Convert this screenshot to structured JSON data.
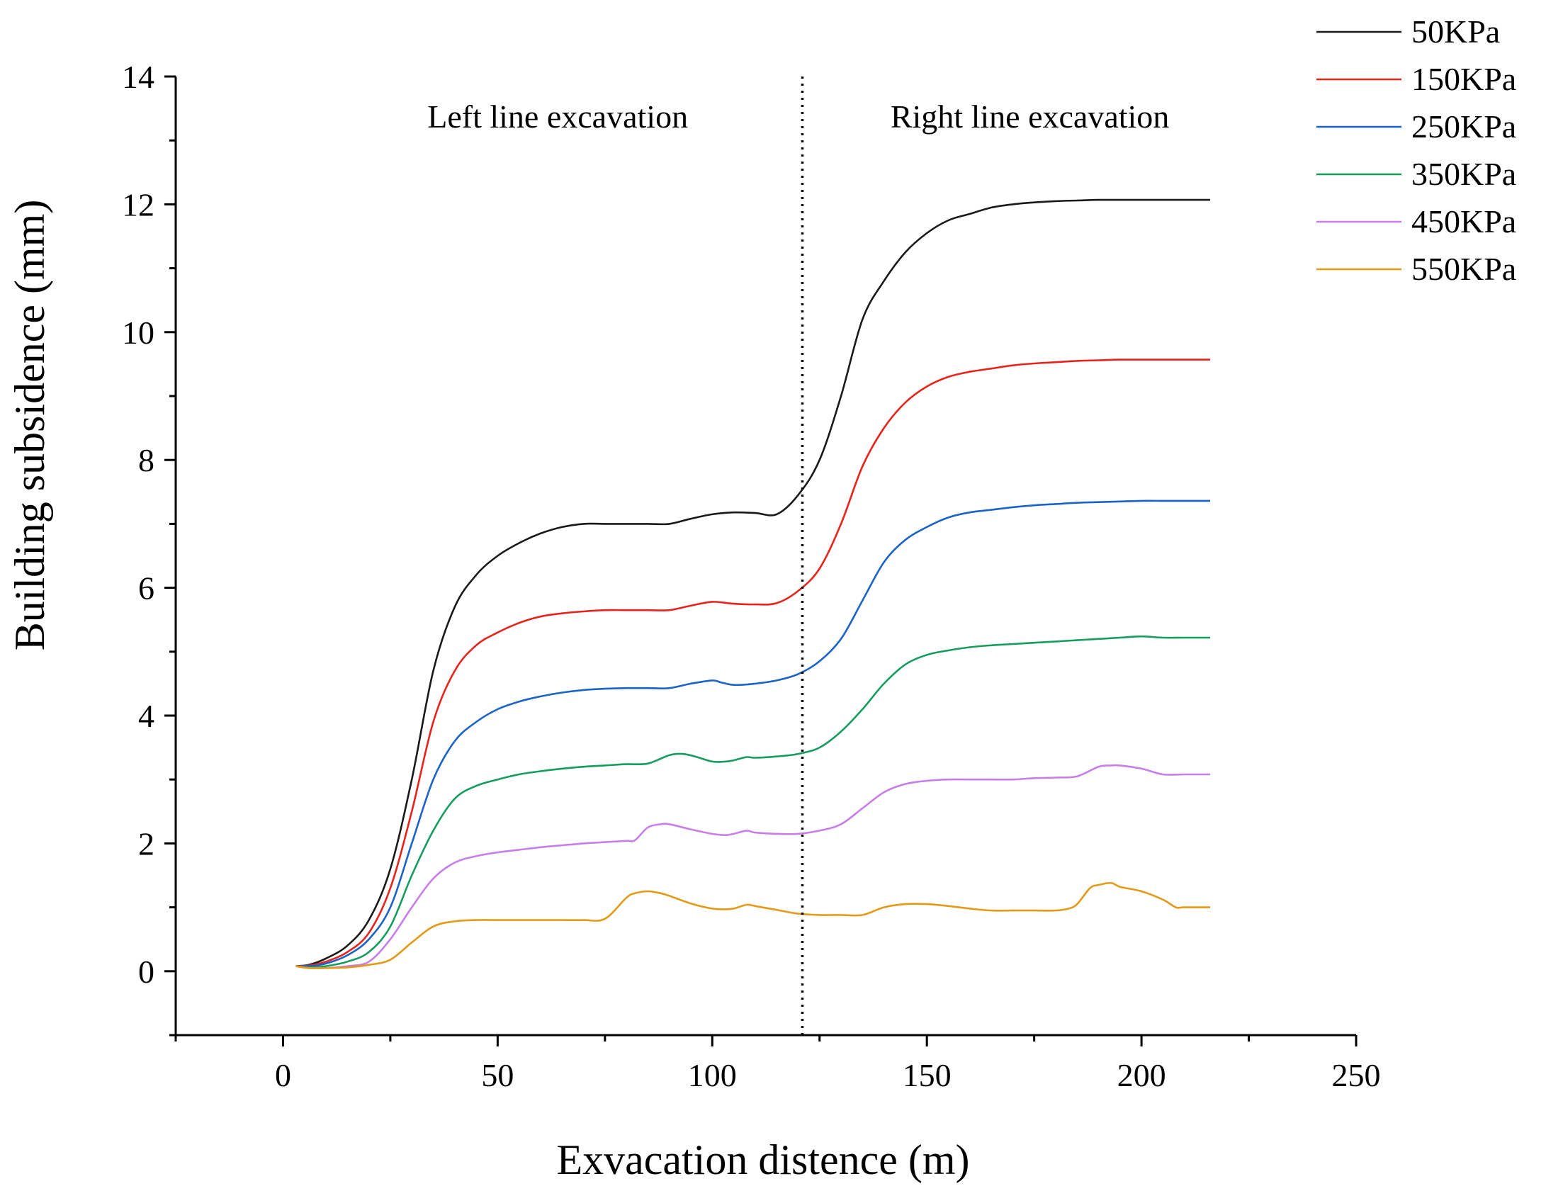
{
  "chart_data": {
    "type": "line",
    "title": "",
    "xlabel": "Exvacation distence (m)",
    "ylabel": "Building subsidence (mm)",
    "xlim": [
      -25,
      250
    ],
    "ylim": [
      -1,
      14
    ],
    "xticks": [
      0,
      50,
      100,
      150,
      200,
      250
    ],
    "yticks": [
      0,
      2,
      4,
      6,
      8,
      10,
      12,
      14
    ],
    "legend_position": "top-right",
    "divider": {
      "x": 121,
      "style": "dotted"
    },
    "annotations": [
      {
        "text": "Left line excavation",
        "x": 64,
        "y": 13.2
      },
      {
        "text": "Right line excavation",
        "x": 174,
        "y": 13.2
      }
    ],
    "series": [
      {
        "name": "50KPa",
        "color": "#1a1a1a",
        "x": [
          3,
          6,
          10,
          15,
          20,
          25,
          30,
          35,
          40,
          45,
          50,
          55,
          60,
          65,
          70,
          75,
          80,
          85,
          90,
          95,
          100,
          105,
          110,
          115,
          120,
          125,
          130,
          135,
          140,
          145,
          150,
          155,
          160,
          165,
          170,
          175,
          180,
          185,
          190,
          195,
          200,
          205,
          210,
          216
        ],
        "y": [
          0.08,
          0.1,
          0.2,
          0.4,
          0.8,
          1.6,
          3.0,
          4.7,
          5.7,
          6.2,
          6.5,
          6.7,
          6.85,
          6.95,
          7.0,
          7.0,
          7.0,
          7.0,
          7.0,
          7.08,
          7.15,
          7.18,
          7.17,
          7.15,
          7.45,
          8.0,
          9.0,
          10.2,
          10.8,
          11.25,
          11.55,
          11.75,
          11.85,
          11.95,
          12.0,
          12.03,
          12.05,
          12.06,
          12.07,
          12.07,
          12.07,
          12.07,
          12.07,
          12.07
        ]
      },
      {
        "name": "150KPa",
        "color": "#e8231b",
        "x": [
          3,
          6,
          10,
          15,
          20,
          25,
          30,
          35,
          40,
          45,
          50,
          55,
          60,
          65,
          70,
          75,
          80,
          85,
          90,
          95,
          100,
          105,
          110,
          115,
          120,
          125,
          130,
          135,
          140,
          145,
          150,
          155,
          160,
          165,
          170,
          175,
          180,
          185,
          190,
          195,
          200,
          205,
          210,
          216
        ],
        "y": [
          0.08,
          0.09,
          0.15,
          0.3,
          0.6,
          1.3,
          2.5,
          3.9,
          4.7,
          5.1,
          5.3,
          5.45,
          5.55,
          5.6,
          5.63,
          5.65,
          5.65,
          5.65,
          5.65,
          5.72,
          5.78,
          5.75,
          5.74,
          5.76,
          5.95,
          6.3,
          7.0,
          7.9,
          8.5,
          8.9,
          9.15,
          9.3,
          9.38,
          9.43,
          9.48,
          9.51,
          9.53,
          9.55,
          9.56,
          9.57,
          9.57,
          9.57,
          9.57,
          9.57
        ]
      },
      {
        "name": "250KPa",
        "color": "#1a63c8",
        "x": [
          3,
          6,
          10,
          15,
          20,
          25,
          30,
          35,
          40,
          45,
          50,
          55,
          60,
          65,
          70,
          75,
          80,
          85,
          90,
          95,
          100,
          102,
          105,
          110,
          115,
          120,
          125,
          130,
          135,
          140,
          145,
          150,
          155,
          160,
          165,
          170,
          175,
          180,
          185,
          190,
          195,
          200,
          205,
          210,
          216
        ],
        "y": [
          0.08,
          0.08,
          0.12,
          0.25,
          0.5,
          1.0,
          2.0,
          3.0,
          3.6,
          3.9,
          4.1,
          4.22,
          4.3,
          4.36,
          4.4,
          4.42,
          4.43,
          4.43,
          4.43,
          4.5,
          4.55,
          4.52,
          4.48,
          4.5,
          4.55,
          4.65,
          4.85,
          5.2,
          5.8,
          6.4,
          6.75,
          6.95,
          7.1,
          7.18,
          7.22,
          7.26,
          7.29,
          7.31,
          7.33,
          7.34,
          7.35,
          7.36,
          7.36,
          7.36,
          7.36
        ]
      },
      {
        "name": "350KPa",
        "color": "#159d5e",
        "x": [
          3,
          6,
          10,
          15,
          20,
          25,
          30,
          35,
          40,
          45,
          50,
          55,
          60,
          65,
          70,
          75,
          80,
          85,
          90,
          93,
          96,
          100,
          103,
          105,
          108,
          110,
          115,
          120,
          125,
          130,
          135,
          140,
          145,
          150,
          155,
          160,
          165,
          170,
          175,
          180,
          185,
          190,
          195,
          200,
          205,
          210,
          216
        ],
        "y": [
          0.08,
          0.06,
          0.08,
          0.15,
          0.3,
          0.7,
          1.5,
          2.2,
          2.7,
          2.9,
          3.0,
          3.08,
          3.13,
          3.17,
          3.2,
          3.22,
          3.24,
          3.25,
          3.38,
          3.4,
          3.36,
          3.28,
          3.28,
          3.3,
          3.35,
          3.34,
          3.36,
          3.4,
          3.5,
          3.75,
          4.1,
          4.5,
          4.8,
          4.95,
          5.02,
          5.07,
          5.1,
          5.12,
          5.14,
          5.16,
          5.18,
          5.2,
          5.22,
          5.24,
          5.22,
          5.22,
          5.22
        ]
      },
      {
        "name": "450KPa",
        "color": "#c77ee8",
        "x": [
          3,
          6,
          10,
          15,
          20,
          25,
          30,
          35,
          40,
          45,
          50,
          55,
          60,
          65,
          70,
          75,
          80,
          82,
          85,
          88,
          90,
          95,
          100,
          103,
          105,
          108,
          110,
          115,
          120,
          125,
          130,
          135,
          140,
          145,
          150,
          155,
          160,
          165,
          170,
          175,
          180,
          185,
          190,
          193,
          195,
          200,
          205,
          210,
          216
        ],
        "y": [
          0.08,
          0.05,
          0.05,
          0.08,
          0.15,
          0.5,
          1.0,
          1.45,
          1.7,
          1.8,
          1.86,
          1.9,
          1.94,
          1.97,
          2.0,
          2.02,
          2.04,
          2.05,
          2.25,
          2.3,
          2.3,
          2.22,
          2.15,
          2.13,
          2.15,
          2.2,
          2.17,
          2.15,
          2.15,
          2.2,
          2.3,
          2.55,
          2.8,
          2.93,
          2.98,
          3.0,
          3.0,
          3.0,
          3.0,
          3.02,
          3.03,
          3.05,
          3.2,
          3.22,
          3.22,
          3.17,
          3.08,
          3.08,
          3.08
        ]
      },
      {
        "name": "550KPa",
        "color": "#e49a16",
        "x": [
          3,
          6,
          10,
          15,
          20,
          25,
          30,
          35,
          40,
          45,
          50,
          55,
          60,
          65,
          70,
          75,
          80,
          82,
          85,
          88,
          90,
          95,
          100,
          103,
          105,
          108,
          110,
          115,
          120,
          125,
          130,
          135,
          140,
          145,
          150,
          155,
          160,
          165,
          170,
          175,
          180,
          183,
          185,
          188,
          190,
          193,
          195,
          200,
          205,
          208,
          210,
          216
        ],
        "y": [
          0.08,
          0.05,
          0.05,
          0.06,
          0.1,
          0.18,
          0.45,
          0.7,
          0.78,
          0.8,
          0.8,
          0.8,
          0.8,
          0.8,
          0.8,
          0.82,
          1.15,
          1.22,
          1.25,
          1.22,
          1.18,
          1.06,
          0.98,
          0.97,
          0.98,
          1.04,
          1.02,
          0.96,
          0.9,
          0.88,
          0.88,
          0.88,
          1.0,
          1.05,
          1.05,
          1.02,
          0.98,
          0.95,
          0.95,
          0.95,
          0.95,
          0.98,
          1.05,
          1.3,
          1.35,
          1.38,
          1.32,
          1.25,
          1.12,
          1.0,
          1.0,
          1.0
        ]
      }
    ]
  }
}
